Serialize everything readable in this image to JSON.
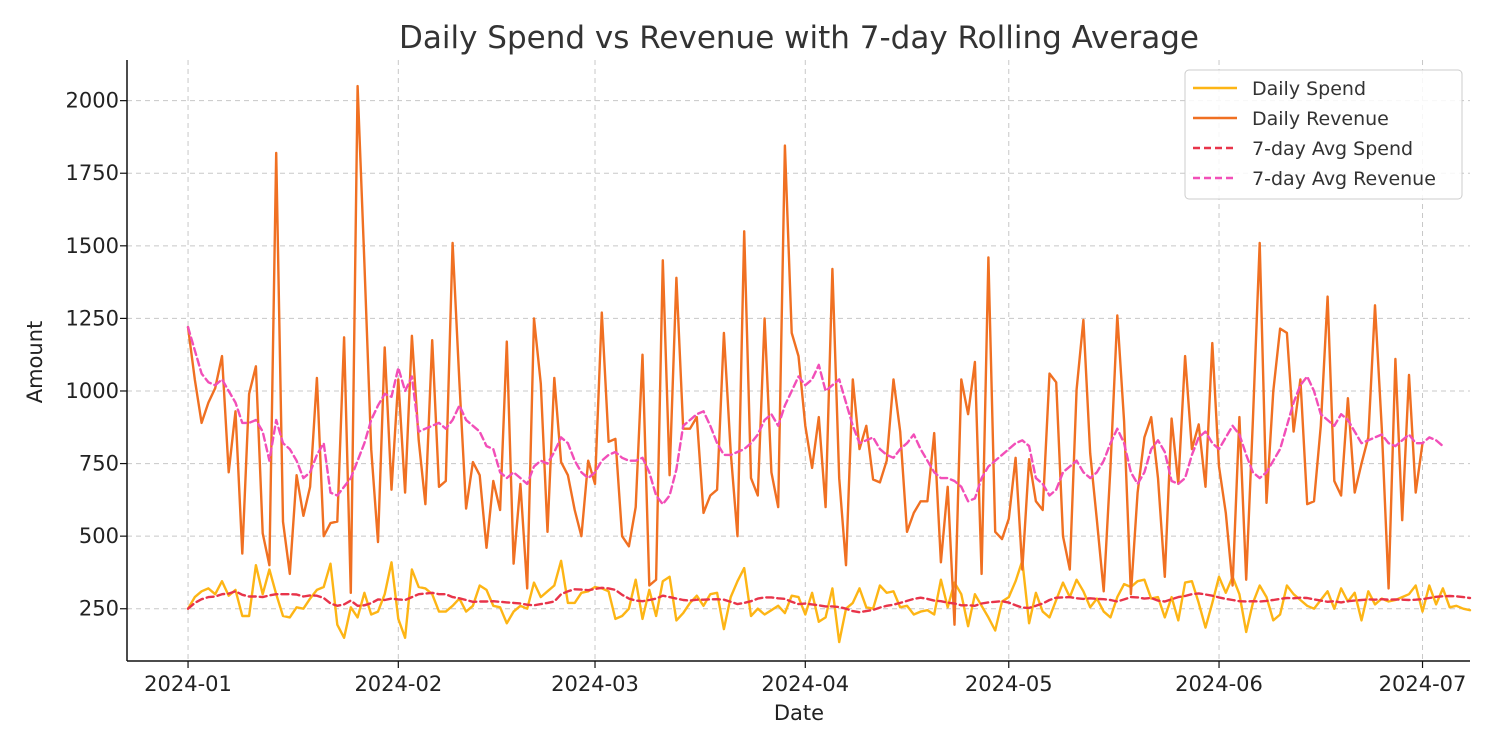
{
  "chart_data": {
    "type": "line",
    "title": "Daily Spend vs Revenue with 7-day Rolling Average",
    "xlabel": "Date",
    "ylabel": "Amount",
    "x_start": "2024-01-01",
    "x_end": "2024-06-30",
    "xlim": [
      "2023-12-23",
      "2024-07-08"
    ],
    "ylim": [
      70,
      2140
    ],
    "x_ticks": [
      "2024-01",
      "2024-02",
      "2024-03",
      "2024-04",
      "2024-05",
      "2024-06",
      "2024-07"
    ],
    "x_tick_dates": [
      "2024-01-01",
      "2024-02-01",
      "2024-03-01",
      "2024-04-01",
      "2024-05-01",
      "2024-06-01",
      "2024-07-01"
    ],
    "y_ticks": [
      250,
      500,
      750,
      1000,
      1250,
      1500,
      1750,
      2000
    ],
    "grid": true,
    "legend_position": "top-right",
    "series": [
      {
        "name": "Daily Spend",
        "color": "#FDB515",
        "dash": "solid",
        "values": [
          250,
          290,
          310,
          320,
          300,
          345,
          295,
          315,
          225,
          225,
          400,
          300,
          385,
          300,
          225,
          220,
          255,
          250,
          285,
          315,
          325,
          405,
          195,
          150,
          255,
          220,
          305,
          230,
          240,
          300,
          410,
          215,
          150,
          385,
          325,
          320,
          300,
          240,
          240,
          260,
          285,
          240,
          260,
          330,
          315,
          260,
          255,
          200,
          240,
          260,
          250,
          340,
          290,
          310,
          330,
          415,
          270,
          270,
          305,
          310,
          325,
          320,
          310,
          215,
          225,
          250,
          350,
          215,
          315,
          225,
          345,
          360,
          210,
          235,
          270,
          295,
          260,
          300,
          305,
          180,
          290,
          345,
          390,
          225,
          250,
          230,
          245,
          260,
          235,
          295,
          290,
          230,
          305,
          205,
          220,
          320,
          135,
          250,
          270,
          320,
          255,
          250,
          330,
          305,
          310,
          255,
          260,
          230,
          240,
          245,
          230,
          350,
          255,
          340,
          300,
          190,
          300,
          260,
          220,
          175,
          275,
          290,
          345,
          415,
          200,
          305,
          240,
          220,
          280,
          340,
          290,
          350,
          310,
          255,
          285,
          240,
          220,
          290,
          335,
          325,
          345,
          350,
          285,
          290,
          220,
          290,
          210,
          340,
          345,
          270,
          185,
          270,
          360,
          305,
          360,
          300,
          170,
          270,
          330,
          290,
          210,
          230,
          330,
          300,
          280,
          260,
          250,
          280,
          310,
          250,
          320,
          275,
          305,
          210,
          310,
          265,
          285,
          275,
          280,
          290,
          300,
          330,
          240,
          330,
          265,
          320,
          255,
          260,
          250,
          245
        ]
      },
      {
        "name": "Daily Revenue",
        "color": "#F07022",
        "dash": "solid",
        "values": [
          1220,
          1040,
          890,
          960,
          1010,
          1120,
          720,
          930,
          440,
          990,
          1085,
          510,
          400,
          1820,
          550,
          370,
          710,
          570,
          670,
          1045,
          500,
          545,
          550,
          1185,
          305,
          2050,
          1440,
          800,
          480,
          1150,
          660,
          1040,
          650,
          1190,
          830,
          610,
          1175,
          670,
          690,
          1510,
          1030,
          595,
          755,
          710,
          460,
          690,
          590,
          1170,
          405,
          680,
          320,
          1250,
          1025,
          515,
          1045,
          755,
          710,
          590,
          500,
          760,
          680,
          1270,
          825,
          835,
          500,
          465,
          600,
          1125,
          330,
          350,
          1450,
          710,
          1390,
          870,
          870,
          910,
          580,
          640,
          660,
          1200,
          790,
          500,
          1550,
          700,
          640,
          1250,
          720,
          600,
          1845,
          1200,
          1120,
          880,
          735,
          910,
          600,
          1420,
          700,
          400,
          1040,
          800,
          880,
          695,
          685,
          760,
          1040,
          860,
          515,
          580,
          620,
          620,
          855,
          410,
          670,
          195,
          1040,
          920,
          1100,
          370,
          1460,
          515,
          490,
          560,
          770,
          385,
          765,
          620,
          590,
          1060,
          1030,
          500,
          385,
          1005,
          1245,
          785,
          555,
          310,
          740,
          1260,
          895,
          300,
          650,
          840,
          910,
          700,
          360,
          905,
          680,
          1120,
          800,
          885,
          670,
          1165,
          740,
          580,
          330,
          910,
          350,
          900,
          1510,
          615,
          1000,
          1215,
          1200,
          860,
          1040,
          610,
          620,
          880,
          1325,
          690,
          640,
          975,
          650,
          750,
          840,
          1295,
          870,
          320,
          1110,
          555,
          1055,
          650,
          820
        ]
      },
      {
        "name": "7-day Avg Spend",
        "color": "#E8344A",
        "dash": "dashed",
        "values": [
          250,
          270,
          283,
          290,
          292,
          300,
          302,
          310,
          298,
          292,
          292,
          290,
          296,
          300,
          300,
          300,
          299,
          292,
          296,
          295,
          287,
          268,
          260,
          265,
          278,
          260,
          262,
          269,
          282,
          280,
          285,
          282,
          280,
          290,
          300,
          302,
          305,
          300,
          300,
          290,
          286,
          280,
          274,
          275,
          275,
          276,
          274,
          272,
          270,
          268,
          264,
          262,
          266,
          270,
          275,
          300,
          310,
          317,
          316,
          314,
          318,
          322,
          320,
          315,
          298,
          285,
          278,
          276,
          280,
          285,
          295,
          290,
          285,
          280,
          278,
          281,
          281,
          282,
          283,
          281,
          274,
          266,
          270,
          276,
          285,
          289,
          289,
          286,
          284,
          274,
          266,
          268,
          265,
          262,
          258,
          258,
          256,
          250,
          242,
          238,
          242,
          246,
          254,
          260,
          264,
          270,
          277,
          284,
          288,
          284,
          278,
          276,
          271,
          268,
          262,
          262,
          260,
          268,
          272,
          274,
          276,
          271,
          262,
          254,
          253,
          260,
          268,
          280,
          288,
          289,
          290,
          286,
          284,
          286,
          284,
          283,
          280,
          275,
          282,
          290,
          289,
          285,
          287,
          278,
          275,
          283,
          290,
          294,
          300,
          303,
          299,
          295,
          289,
          284,
          280,
          276,
          275,
          276,
          275,
          277,
          280,
          284,
          287,
          286,
          288,
          287,
          282,
          278,
          274,
          276,
          272,
          276,
          278,
          280,
          282,
          281,
          283,
          281,
          282,
          281,
          280,
          281,
          283,
          287,
          291,
          293,
          294,
          293,
          290,
          287
        ]
      },
      {
        "name": "7-day Avg Revenue",
        "color": "#F24FB8",
        "dash": "dashed",
        "values": [
          1220,
          1140,
          1060,
          1030,
          1020,
          1040,
          1000,
          960,
          890,
          890,
          900,
          860,
          760,
          900,
          820,
          800,
          760,
          700,
          720,
          780,
          820,
          650,
          640,
          670,
          700,
          760,
          820,
          900,
          950,
          990,
          980,
          1080,
          1000,
          1050,
          860,
          870,
          880,
          890,
          870,
          900,
          950,
          900,
          880,
          860,
          810,
          800,
          720,
          700,
          720,
          700,
          680,
          740,
          760,
          750,
          790,
          840,
          820,
          760,
          720,
          700,
          720,
          760,
          780,
          790,
          770,
          760,
          760,
          770,
          720,
          640,
          610,
          640,
          730,
          880,
          900,
          920,
          930,
          880,
          820,
          780,
          780,
          790,
          800,
          820,
          850,
          900,
          920,
          880,
          950,
          1000,
          1050,
          1020,
          1040,
          1090,
          1000,
          1020,
          1040,
          960,
          880,
          820,
          830,
          840,
          800,
          780,
          770,
          800,
          820,
          850,
          800,
          760,
          720,
          700,
          700,
          690,
          670,
          620,
          630,
          700,
          740,
          760,
          780,
          800,
          820,
          830,
          810,
          700,
          680,
          640,
          660,
          720,
          740,
          760,
          720,
          700,
          720,
          760,
          820,
          870,
          820,
          720,
          680,
          720,
          800,
          830,
          790,
          690,
          680,
          700,
          780,
          840,
          860,
          820,
          800,
          840,
          880,
          850,
          780,
          720,
          700,
          720,
          760,
          800,
          880,
          960,
          1020,
          1050,
          1000,
          920,
          900,
          880,
          920,
          900,
          860,
          820,
          830,
          840,
          850,
          820,
          810,
          830,
          850,
          820,
          820,
          840,
          830,
          810
        ]
      }
    ]
  }
}
